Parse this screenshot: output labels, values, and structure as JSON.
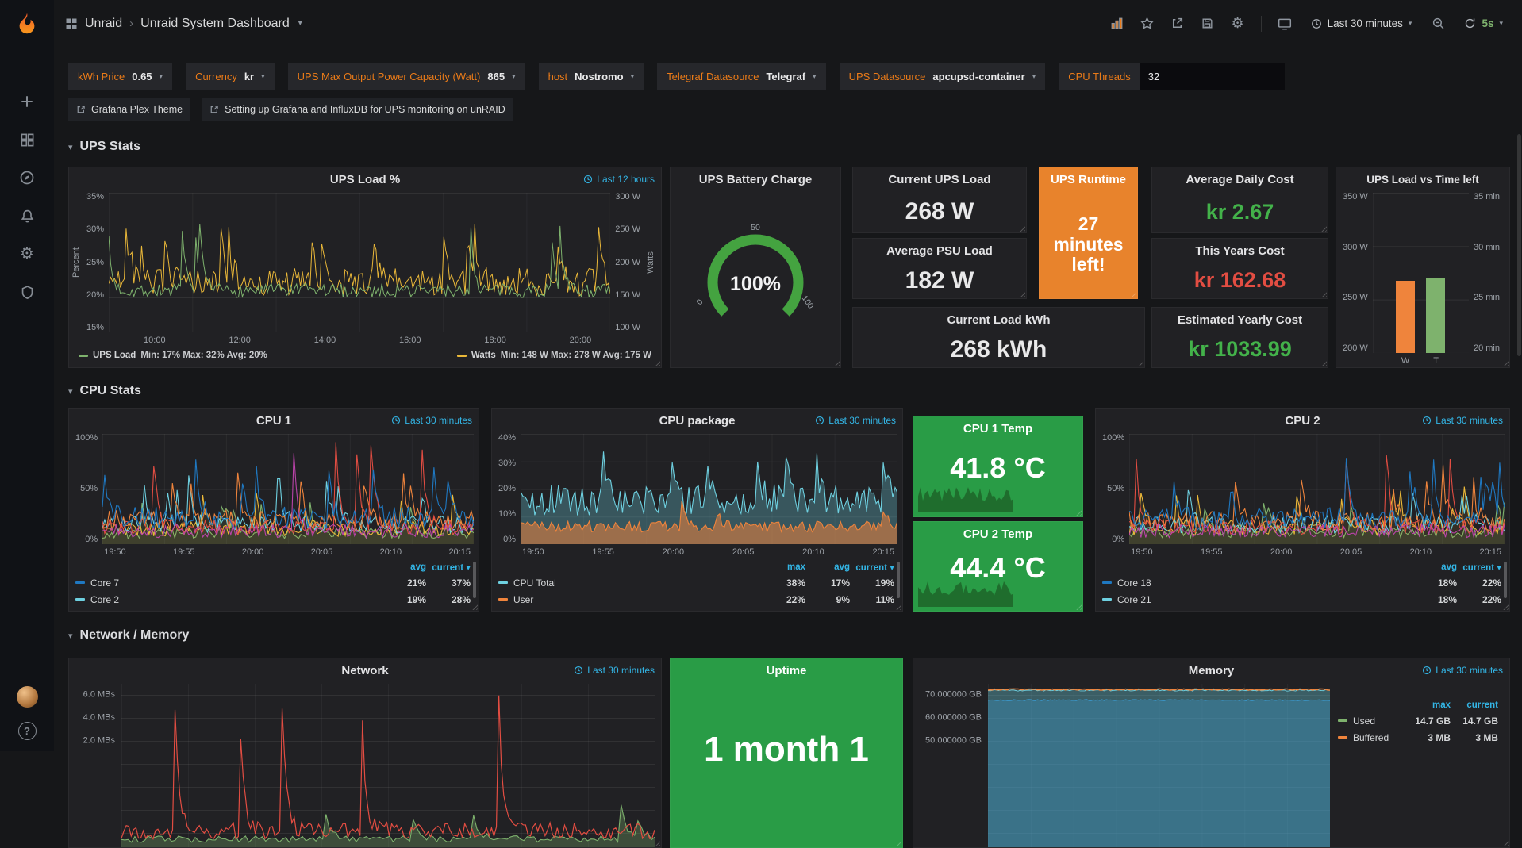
{
  "nav": {
    "breadcrumb": {
      "app": "Unraid",
      "title": "Unraid System Dashboard"
    },
    "time_picker": "Last 30 minutes",
    "refresh": "5s"
  },
  "variables": [
    {
      "label": "kWh Price",
      "value": "0.65"
    },
    {
      "label": "Currency",
      "value": "kr"
    },
    {
      "label": "UPS Max Output Power Capacity (Watt)",
      "value": "865"
    },
    {
      "label": "host",
      "value": "Nostromo"
    },
    {
      "label": "Telegraf Datasource",
      "value": "Telegraf"
    },
    {
      "label": "UPS Datasource",
      "value": "apcupsd-container"
    },
    {
      "label": "CPU Threads",
      "value": "32",
      "type": "input"
    }
  ],
  "links": [
    {
      "label": "Grafana Plex Theme"
    },
    {
      "label": "Setting up Grafana and InfluxDB for UPS monitoring on unRAID"
    }
  ],
  "sections": {
    "ups": "UPS Stats",
    "cpu": "CPU Stats",
    "net": "Network / Memory"
  },
  "panels": {
    "ups_load": {
      "title": "UPS Load %",
      "override": "Last 12 hours",
      "ylabel_left": "Percent",
      "ylabel_right": "Watts",
      "yticks_left": [
        "35%",
        "30%",
        "25%",
        "20%",
        "15%"
      ],
      "yticks_right": [
        "300 W",
        "250 W",
        "200 W",
        "150 W",
        "100 W"
      ],
      "xticks": [
        "10:00",
        "12:00",
        "14:00",
        "16:00",
        "18:00",
        "20:00"
      ],
      "legend": [
        {
          "name": "UPS Load",
          "color": "#7EB26D",
          "stats": "Min: 17% Max: 32% Avg: 20%"
        },
        {
          "name": "Watts",
          "color": "#EAB839",
          "stats": "Min: 148 W Max: 278 W Avg: 175 W"
        }
      ],
      "series": [
        {
          "color": "#EAB839",
          "base": 0.36,
          "amp": 0.1,
          "spikeP": 0.05,
          "spikeAmp": 0.4,
          "seed": 42,
          "n": 260,
          "lw": 1
        },
        {
          "color": "#7EB26D",
          "base": 0.3,
          "amp": 0.05,
          "spikeP": 0.018,
          "spikeAmp": 0.55,
          "seed": 7,
          "n": 260,
          "lw": 1
        }
      ]
    },
    "battery": {
      "title": "UPS Battery Charge",
      "value": "100%",
      "ticks": [
        "0",
        "50",
        "100"
      ],
      "gauge_color": "#44a340"
    },
    "current_ups_load": {
      "title": "Current UPS Load",
      "value": "268 W"
    },
    "ups_runtime": {
      "title": "UPS Runtime",
      "value": "27 minutes left!",
      "bg": "#e8832c"
    },
    "avg_daily_cost": {
      "title": "Average Daily Cost",
      "value": "kr 2.67",
      "color": "#43b24a"
    },
    "avg_psu_load": {
      "title": "Average PSU Load",
      "value": "182 W"
    },
    "this_years_cost": {
      "title": "This Years Cost",
      "value": "kr 162.68",
      "color": "#e24d42"
    },
    "current_load_kwh": {
      "title": "Current Load kWh",
      "value": "268 kWh"
    },
    "est_yearly_cost": {
      "title": "Estimated Yearly Cost",
      "value": "kr 1033.99",
      "color": "#43b24a"
    },
    "ups_bar": {
      "title": "UPS Load vs Time left",
      "yticks_left": [
        "350 W",
        "300 W",
        "250 W",
        "200 W"
      ],
      "yticks_right": [
        "35 min",
        "30 min",
        "25 min",
        "20 min"
      ],
      "bars": [
        {
          "label": "W",
          "value": "268 W",
          "color": "#EF843C",
          "frac": 0.453
        },
        {
          "label": "T",
          "value": "27 min",
          "color": "#7EB26D",
          "frac": 0.467
        }
      ]
    },
    "cpu1": {
      "title": "CPU 1",
      "override": "Last 30 minutes",
      "yticks": [
        "100%",
        "50%",
        "0%"
      ],
      "xticks": [
        "19:50",
        "19:55",
        "20:00",
        "20:05",
        "20:10",
        "20:15"
      ],
      "legend": {
        "cols": [
          "avg",
          "current"
        ],
        "sort": "current",
        "rows": [
          {
            "name": "Core 7",
            "color": "#1F78C1",
            "values": [
              "21%",
              "37%"
            ]
          },
          {
            "name": "Core 2",
            "color": "#6ED0E0",
            "values": [
              "19%",
              "28%"
            ]
          }
        ]
      },
      "series": [
        {
          "color": "#7EB26D",
          "base": 0.1,
          "amp": 0.05,
          "spikeP": 0.05,
          "spikeAmp": 0.3,
          "seed": 3,
          "fill": true,
          "fillOp": 0.12
        },
        {
          "color": "#EAB839",
          "base": 0.14,
          "amp": 0.07,
          "spikeP": 0.04,
          "spikeAmp": 0.35,
          "seed": 11,
          "fill": true,
          "fillOp": 0.1
        },
        {
          "color": "#6ED0E0",
          "base": 0.18,
          "amp": 0.08,
          "spikeP": 0.05,
          "spikeAmp": 0.4,
          "seed": 19
        },
        {
          "color": "#EF843C",
          "base": 0.22,
          "amp": 0.09,
          "spikeP": 0.05,
          "spikeAmp": 0.45,
          "seed": 23
        },
        {
          "color": "#E24D42",
          "base": 0.16,
          "amp": 0.07,
          "spikeP": 0.02,
          "spikeAmp": 0.8,
          "seed": 31
        },
        {
          "color": "#1F78C1",
          "base": 0.24,
          "amp": 0.1,
          "spikeP": 0.04,
          "spikeAmp": 0.5,
          "seed": 37
        },
        {
          "color": "#BA43A9",
          "base": 0.12,
          "amp": 0.06,
          "spikeP": 0.012,
          "spikeAmp": 0.85,
          "seed": 41
        }
      ]
    },
    "cpu_package": {
      "title": "CPU package",
      "override": "Last 30 minutes",
      "yticks": [
        "40%",
        "30%",
        "20%",
        "10%",
        "0%"
      ],
      "xticks": [
        "19:50",
        "19:55",
        "20:00",
        "20:05",
        "20:10",
        "20:15"
      ],
      "legend": {
        "cols": [
          "max",
          "avg",
          "current"
        ],
        "sort": "current",
        "rows": [
          {
            "name": "CPU Total",
            "color": "#6ED0E0",
            "values": [
              "38%",
              "17%",
              "19%"
            ]
          },
          {
            "name": "User",
            "color": "#EF843C",
            "values": [
              "22%",
              "9%",
              "11%"
            ]
          }
        ]
      },
      "series": [
        {
          "color": "#6ED0E0",
          "base": 0.4,
          "amp": 0.14,
          "spikeP": 0.05,
          "spikeAmp": 0.35,
          "seed": 5,
          "fill": true,
          "fillOp": 0.3
        },
        {
          "color": "#EF843C",
          "base": 0.16,
          "amp": 0.05,
          "spikeP": 0.03,
          "spikeAmp": 0.2,
          "seed": 9,
          "fill": true,
          "fillOp": 0.55
        }
      ]
    },
    "cpu1_temp": {
      "title": "CPU 1 Temp",
      "value": "41.8 °C",
      "bg": "#299c46"
    },
    "cpu2_temp": {
      "title": "CPU 2 Temp",
      "value": "44.4 °C",
      "bg": "#299c46"
    },
    "cpu2": {
      "title": "CPU 2",
      "override": "Last 30 minutes",
      "yticks": [
        "100%",
        "50%",
        "0%"
      ],
      "xticks": [
        "19:50",
        "19:55",
        "20:00",
        "20:05",
        "20:10",
        "20:15"
      ],
      "legend": {
        "cols": [
          "avg",
          "current"
        ],
        "sort": "current",
        "rows": [
          {
            "name": "Core 18",
            "color": "#1F78C1",
            "values": [
              "18%",
              "22%"
            ]
          },
          {
            "name": "Core 21",
            "color": "#6ED0E0",
            "values": [
              "18%",
              "22%"
            ]
          }
        ]
      },
      "series": [
        {
          "color": "#7EB26D",
          "base": 0.11,
          "amp": 0.05,
          "spikeP": 0.05,
          "spikeAmp": 0.3,
          "seed": 4,
          "fill": true,
          "fillOp": 0.12
        },
        {
          "color": "#EAB839",
          "base": 0.15,
          "amp": 0.07,
          "spikeP": 0.04,
          "spikeAmp": 0.35,
          "seed": 12,
          "fill": true,
          "fillOp": 0.1
        },
        {
          "color": "#6ED0E0",
          "base": 0.18,
          "amp": 0.08,
          "spikeP": 0.05,
          "spikeAmp": 0.4,
          "seed": 20
        },
        {
          "color": "#EF843C",
          "base": 0.21,
          "amp": 0.09,
          "spikeP": 0.05,
          "spikeAmp": 0.45,
          "seed": 24
        },
        {
          "color": "#E24D42",
          "base": 0.16,
          "amp": 0.07,
          "spikeP": 0.02,
          "spikeAmp": 0.7,
          "seed": 32
        },
        {
          "color": "#1F78C1",
          "base": 0.23,
          "amp": 0.1,
          "spikeP": 0.04,
          "spikeAmp": 0.5,
          "seed": 38
        },
        {
          "color": "#BA43A9",
          "base": 0.12,
          "amp": 0.06,
          "spikeP": 0.015,
          "spikeAmp": 0.95,
          "seed": 44
        }
      ]
    },
    "network": {
      "title": "Network",
      "override": "Last 30 minutes",
      "yticks": [
        "6.0 MBs",
        "4.0 MBs",
        "2.0 MBs"
      ],
      "series": [
        {
          "color": "#7EB26D",
          "base": 0.05,
          "amp": 0.02,
          "spikeP": 0.03,
          "spikeAmp": 0.2,
          "seed": 14,
          "fill": true,
          "fillOp": 0.3
        },
        {
          "color": "#E24D42",
          "base": 0.1,
          "amp": 0.05,
          "spikeP": 0.05,
          "spikeAmp": 0.8,
          "seed": 77,
          "n": 220,
          "lw": 1.2
        }
      ]
    },
    "uptime": {
      "title": "Uptime",
      "value": "1 month 1",
      "bg": "#299c46"
    },
    "memory": {
      "title": "Memory",
      "override": "Last 30 minutes",
      "yticks": [
        "70.000000 GB",
        "60.000000 GB",
        "50.000000 GB"
      ],
      "legend": {
        "cols": [
          "max",
          "current"
        ],
        "rows": [
          {
            "name": "Used",
            "color": "#7EB26D",
            "values": [
              "14.7 GB",
              "14.7 GB"
            ]
          },
          {
            "name": "Buffered",
            "color": "#EF843C",
            "values": [
              "3 MB",
              "3 MB"
            ]
          }
        ]
      },
      "series": [
        {
          "color": "#1F78C1",
          "base": 0.9,
          "amp": 0.004,
          "seed": 2,
          "fill": true,
          "fillOp": 0.35,
          "lw": 1
        },
        {
          "color": "#6ED0E0",
          "base": 0.96,
          "amp": 0.004,
          "seed": 4,
          "fill": true,
          "fillOp": 0.35,
          "lw": 1
        },
        {
          "color": "#EF843C",
          "base": 0.965,
          "amp": 0.004,
          "seed": 6,
          "lw": 1.5
        }
      ]
    }
  }
}
